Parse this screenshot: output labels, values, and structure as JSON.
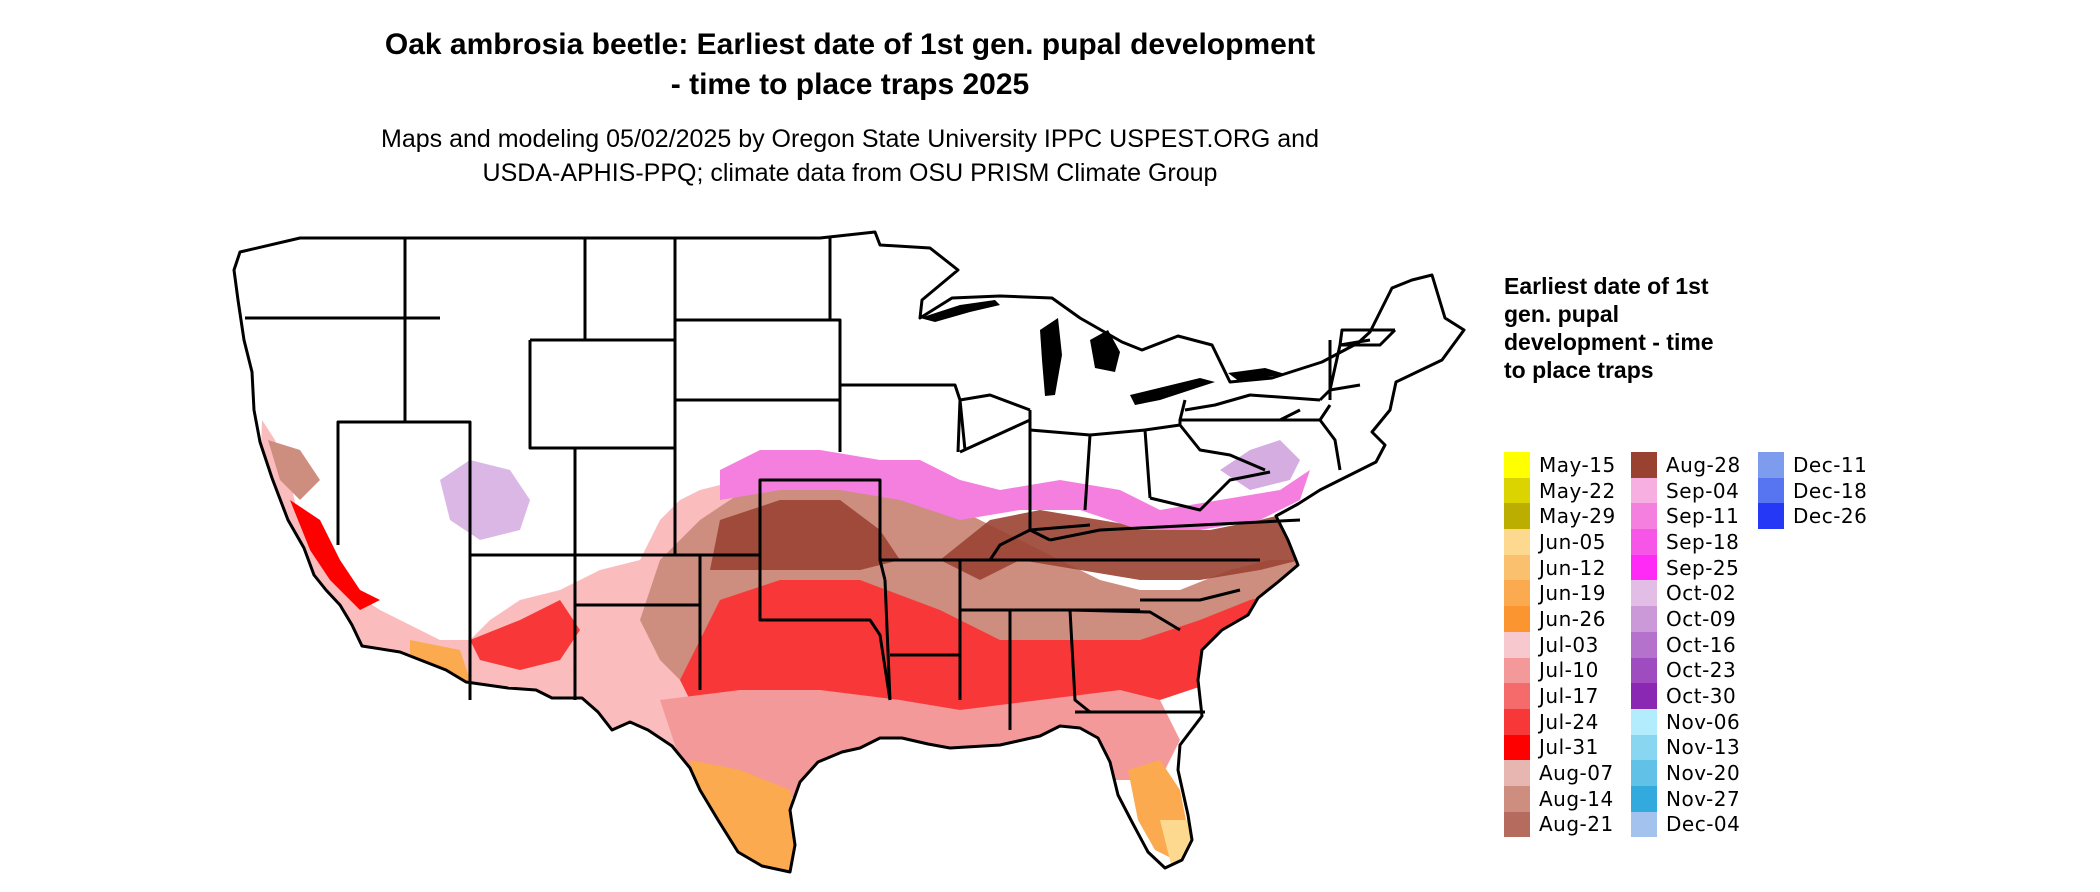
{
  "title_line1": "Oak ambrosia beetle: Earliest date of 1st gen. pupal development",
  "title_line2": "- time to place traps 2025",
  "subtitle_line1": "Maps and modeling 05/02/2025 by Oregon State University IPPC USPEST.ORG and",
  "subtitle_line2": "USDA-APHIS-PPQ; climate data from OSU PRISM Climate Group",
  "legend": {
    "title": "Earliest date of 1st gen. pupal development - time to place traps",
    "items": [
      {
        "label": "May-15",
        "color": "#ffff00"
      },
      {
        "label": "May-22",
        "color": "#dcd400"
      },
      {
        "label": "May-29",
        "color": "#bcae00"
      },
      {
        "label": "Jun-05",
        "color": "#fcd98f"
      },
      {
        "label": "Jun-12",
        "color": "#fbc06e"
      },
      {
        "label": "Jun-19",
        "color": "#fbaa50"
      },
      {
        "label": "Jun-26",
        "color": "#fa9530"
      },
      {
        "label": "Jul-03",
        "color": "#f7c9ce"
      },
      {
        "label": "Jul-10",
        "color": "#f4999a"
      },
      {
        "label": "Jul-17",
        "color": "#f56a6a"
      },
      {
        "label": "Jul-24",
        "color": "#f83838"
      },
      {
        "label": "Jul-31",
        "color": "#ff0000"
      },
      {
        "label": "Aug-07",
        "color": "#e8b6b0"
      },
      {
        "label": "Aug-14",
        "color": "#cd8e80"
      },
      {
        "label": "Aug-21",
        "color": "#b56c5f"
      },
      {
        "label": "Aug-28",
        "color": "#9a4232"
      },
      {
        "label": "Sep-04",
        "color": "#f7aee0"
      },
      {
        "label": "Sep-11",
        "color": "#f57fdf"
      },
      {
        "label": "Sep-18",
        "color": "#f755e8"
      },
      {
        "label": "Sep-25",
        "color": "#ff2af5"
      },
      {
        "label": "Oct-02",
        "color": "#e2bde6"
      },
      {
        "label": "Oct-09",
        "color": "#cb99d8"
      },
      {
        "label": "Oct-16",
        "color": "#b472cc"
      },
      {
        "label": "Oct-23",
        "color": "#9f4cc0"
      },
      {
        "label": "Oct-30",
        "color": "#8a27b3"
      },
      {
        "label": "Nov-06",
        "color": "#b3ecfd"
      },
      {
        "label": "Nov-13",
        "color": "#89d6f0"
      },
      {
        "label": "Nov-20",
        "color": "#61c1e6"
      },
      {
        "label": "Nov-27",
        "color": "#33aadd"
      },
      {
        "label": "Dec-04",
        "color": "#a3c3ee"
      },
      {
        "label": "Dec-11",
        "color": "#7d9ced"
      },
      {
        "label": "Dec-18",
        "color": "#5775f0"
      },
      {
        "label": "Dec-26",
        "color": "#2438f5"
      }
    ]
  }
}
